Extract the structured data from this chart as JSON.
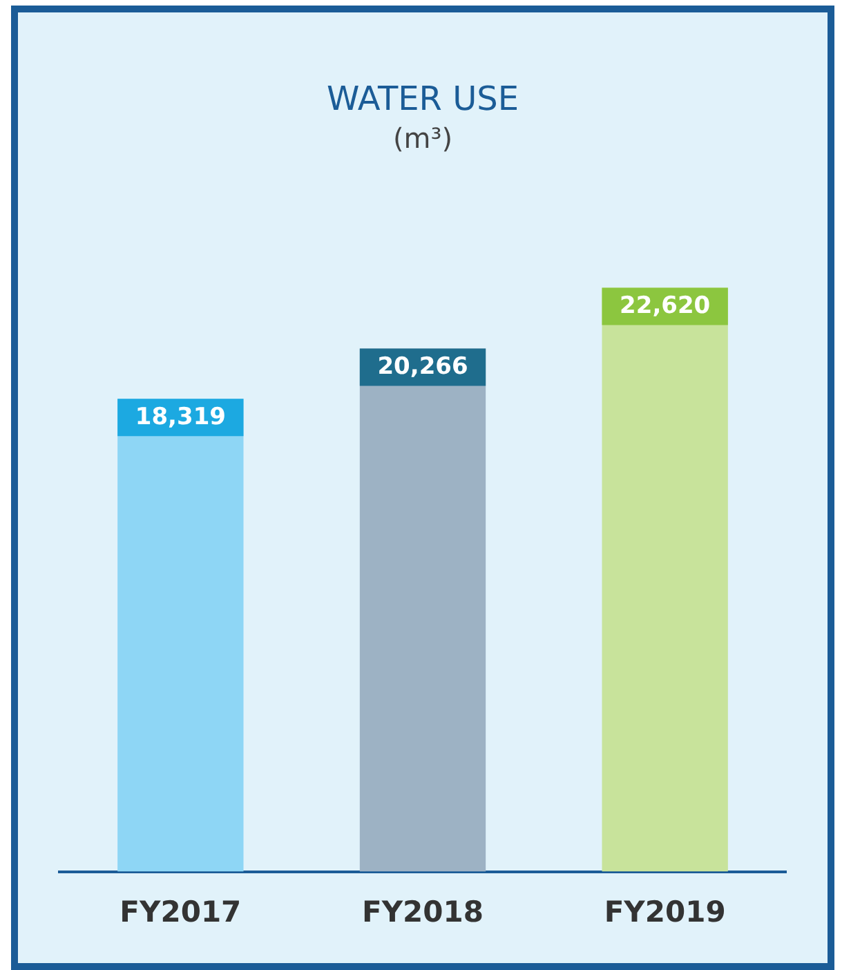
{
  "chart_data": {
    "type": "bar",
    "title": "WATER USE",
    "subtitle": "(m³)",
    "categories": [
      "FY2017",
      "FY2018",
      "FY2019"
    ],
    "values": [
      18319,
      20266,
      22620
    ],
    "colors": [
      "#8ed6f5",
      "#9db2c4",
      "#c8e39b"
    ],
    "value_labels": [
      "18,319",
      "20,266",
      "22,620"
    ],
    "grid": false,
    "legend": false,
    "tick_labels": "x"
  }
}
